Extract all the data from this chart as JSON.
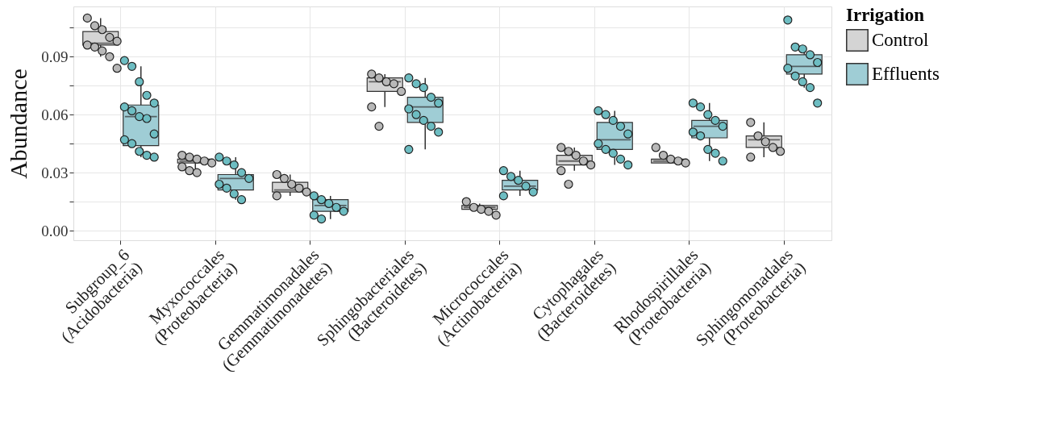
{
  "chart_data": {
    "type": "box",
    "ylabel": "Abundance",
    "legend_title": "Irrigation",
    "legend": "right",
    "grid": true,
    "categories": [
      "Subgroup_6\n(Acidobacteria)",
      "Myxococcales\n(Proteobacteria)",
      "Gemmatimonadales\n(Gemmatimonadetes)",
      "Sphingobacteriales\n(Bacteroidetes)",
      "Micrococcales\n(Actinobacteria)",
      "Cytophagales\n(Bacteroidetes)",
      "Rhodospirillales\n(Proteobacteria)",
      "Sphingomonadales\n(Proteobacteria)"
    ],
    "ylim": [
      -0.005,
      0.116
    ],
    "yticks": [
      {
        "value": 0,
        "label": "0.00"
      },
      {
        "value": 0.015,
        "label": null
      },
      0.03,
      {
        "value": 0.045,
        "label": null
      },
      0.06,
      {
        "value": 0.075,
        "label": null
      },
      0.09,
      {
        "value": 0.105,
        "label": null
      }
    ],
    "series": [
      {
        "name": "Control",
        "color": "#d4d4d4",
        "boxes": [
          {
            "low": 0.09,
            "q1": 0.096,
            "median": 0.097,
            "q3": 0.103,
            "high": 0.11
          },
          {
            "low": 0.03,
            "q1": 0.035,
            "median": 0.036,
            "q3": 0.037,
            "high": 0.039
          },
          {
            "low": 0.018,
            "q1": 0.02,
            "median": 0.021,
            "q3": 0.025,
            "high": 0.029
          },
          {
            "low": 0.064,
            "q1": 0.072,
            "median": 0.077,
            "q3": 0.079,
            "high": 0.081
          },
          {
            "low": 0.01,
            "q1": 0.011,
            "median": 0.012,
            "q3": 0.013,
            "high": 0.014
          },
          {
            "low": 0.031,
            "q1": 0.034,
            "median": 0.036,
            "q3": 0.039,
            "high": 0.043
          },
          {
            "low": 0.035,
            "q1": 0.035,
            "median": 0.036,
            "q3": 0.037,
            "high": 0.038
          },
          {
            "low": 0.038,
            "q1": 0.043,
            "median": 0.047,
            "q3": 0.049,
            "high": 0.056
          }
        ]
      },
      {
        "name": "Effluents",
        "color": "#9fcdd5",
        "boxes": [
          {
            "low": 0.038,
            "q1": 0.044,
            "median": 0.059,
            "q3": 0.065,
            "high": 0.085
          },
          {
            "low": 0.016,
            "q1": 0.021,
            "median": 0.027,
            "q3": 0.029,
            "high": 0.038
          },
          {
            "low": 0.006,
            "q1": 0.01,
            "median": 0.013,
            "q3": 0.016,
            "high": 0.018
          },
          {
            "low": 0.042,
            "q1": 0.056,
            "median": 0.064,
            "q3": 0.069,
            "high": 0.079
          },
          {
            "low": 0.018,
            "q1": 0.021,
            "median": 0.023,
            "q3": 0.026,
            "high": 0.031
          },
          {
            "low": 0.034,
            "q1": 0.042,
            "median": 0.047,
            "q3": 0.056,
            "high": 0.062
          },
          {
            "low": 0.036,
            "q1": 0.048,
            "median": 0.054,
            "q3": 0.057,
            "high": 0.066
          },
          {
            "low": 0.074,
            "q1": 0.081,
            "median": 0.085,
            "q3": 0.091,
            "high": 0.095
          }
        ]
      },
      {
        "type": "scatter",
        "color": "#b8b8b8",
        "x": [
          "Subgroup_6\n(Acidobacteria)",
          "Subgroup_6\n(Acidobacteria)",
          "Subgroup_6\n(Acidobacteria)",
          "Subgroup_6\n(Acidobacteria)",
          "Subgroup_6\n(Acidobacteria)",
          "Subgroup_6\n(Acidobacteria)",
          "Subgroup_6\n(Acidobacteria)",
          "Subgroup_6\n(Acidobacteria)",
          "Subgroup_6\n(Acidobacteria)",
          "Subgroup_6\n(Acidobacteria)",
          "Myxococcales\n(Proteobacteria)",
          "Myxococcales\n(Proteobacteria)",
          "Myxococcales\n(Proteobacteria)",
          "Myxococcales\n(Proteobacteria)",
          "Myxococcales\n(Proteobacteria)",
          "Myxococcales\n(Proteobacteria)",
          "Myxococcales\n(Proteobacteria)",
          "Myxococcales\n(Proteobacteria)",
          "Gemmatimonadales\n(Gemmatimonadetes)",
          "Gemmatimonadales\n(Gemmatimonadetes)",
          "Gemmatimonadales\n(Gemmatimonadetes)",
          "Gemmatimonadales\n(Gemmatimonadetes)",
          "Gemmatimonadales\n(Gemmatimonadetes)",
          "Gemmatimonadales\n(Gemmatimonadetes)",
          "Sphingobacteriales\n(Bacteroidetes)",
          "Sphingobacteriales\n(Bacteroidetes)",
          "Sphingobacteriales\n(Bacteroidetes)",
          "Sphingobacteriales\n(Bacteroidetes)",
          "Sphingobacteriales\n(Bacteroidetes)",
          "Sphingobacteriales\n(Bacteroidetes)",
          "Sphingobacteriales\n(Bacteroidetes)",
          "Micrococcales\n(Actinobacteria)",
          "Micrococcales\n(Actinobacteria)",
          "Micrococcales\n(Actinobacteria)",
          "Micrococcales\n(Actinobacteria)",
          "Micrococcales\n(Actinobacteria)",
          "Cytophagales\n(Bacteroidetes)",
          "Cytophagales\n(Bacteroidetes)",
          "Cytophagales\n(Bacteroidetes)",
          "Cytophagales\n(Bacteroidetes)",
          "Cytophagales\n(Bacteroidetes)",
          "Cytophagales\n(Bacteroidetes)",
          "Cytophagales\n(Bacteroidetes)",
          "Rhodospirillales\n(Proteobacteria)",
          "Rhodospirillales\n(Proteobacteria)",
          "Rhodospirillales\n(Proteobacteria)",
          "Rhodospirillales\n(Proteobacteria)",
          "Rhodospirillales\n(Proteobacteria)",
          "Sphingomonadales\n(Proteobacteria)",
          "Sphingomonadales\n(Proteobacteria)",
          "Sphingomonadales\n(Proteobacteria)",
          "Sphingomonadales\n(Proteobacteria)",
          "Sphingomonadales\n(Proteobacteria)",
          "Sphingomonadales\n(Proteobacteria)"
        ],
        "values": [
          0.11,
          0.106,
          0.104,
          0.1,
          0.098,
          0.096,
          0.095,
          0.093,
          0.09,
          0.084,
          0.039,
          0.038,
          0.037,
          0.036,
          0.035,
          0.033,
          0.031,
          0.03,
          0.029,
          0.027,
          0.024,
          0.022,
          0.02,
          0.018,
          0.081,
          0.079,
          0.077,
          0.076,
          0.072,
          0.064,
          0.054,
          0.015,
          0.012,
          0.011,
          0.01,
          0.008,
          0.043,
          0.041,
          0.039,
          0.036,
          0.034,
          0.031,
          0.024,
          0.043,
          0.039,
          0.037,
          0.036,
          0.035,
          0.056,
          0.049,
          0.046,
          0.043,
          0.041,
          0.038
        ]
      },
      {
        "type": "scatter",
        "color": "#6dbdc2",
        "x": [
          "Subgroup_6\n(Acidobacteria)",
          "Subgroup_6\n(Acidobacteria)",
          "Subgroup_6\n(Acidobacteria)",
          "Subgroup_6\n(Acidobacteria)",
          "Subgroup_6\n(Acidobacteria)",
          "Subgroup_6\n(Acidobacteria)",
          "Subgroup_6\n(Acidobacteria)",
          "Subgroup_6\n(Acidobacteria)",
          "Subgroup_6\n(Acidobacteria)",
          "Subgroup_6\n(Acidobacteria)",
          "Subgroup_6\n(Acidobacteria)",
          "Subgroup_6\n(Acidobacteria)",
          "Subgroup_6\n(Acidobacteria)",
          "Subgroup_6\n(Acidobacteria)",
          "Subgroup_6\n(Acidobacteria)",
          "Myxococcales\n(Proteobacteria)",
          "Myxococcales\n(Proteobacteria)",
          "Myxococcales\n(Proteobacteria)",
          "Myxococcales\n(Proteobacteria)",
          "Myxococcales\n(Proteobacteria)",
          "Myxococcales\n(Proteobacteria)",
          "Myxococcales\n(Proteobacteria)",
          "Myxococcales\n(Proteobacteria)",
          "Myxococcales\n(Proteobacteria)",
          "Gemmatimonadales\n(Gemmatimonadetes)",
          "Gemmatimonadales\n(Gemmatimonadetes)",
          "Gemmatimonadales\n(Gemmatimonadetes)",
          "Gemmatimonadales\n(Gemmatimonadetes)",
          "Gemmatimonadales\n(Gemmatimonadetes)",
          "Gemmatimonadales\n(Gemmatimonadetes)",
          "Gemmatimonadales\n(Gemmatimonadetes)",
          "Sphingobacteriales\n(Bacteroidetes)",
          "Sphingobacteriales\n(Bacteroidetes)",
          "Sphingobacteriales\n(Bacteroidetes)",
          "Sphingobacteriales\n(Bacteroidetes)",
          "Sphingobacteriales\n(Bacteroidetes)",
          "Sphingobacteriales\n(Bacteroidetes)",
          "Sphingobacteriales\n(Bacteroidetes)",
          "Sphingobacteriales\n(Bacteroidetes)",
          "Sphingobacteriales\n(Bacteroidetes)",
          "Sphingobacteriales\n(Bacteroidetes)",
          "Sphingobacteriales\n(Bacteroidetes)",
          "Micrococcales\n(Actinobacteria)",
          "Micrococcales\n(Actinobacteria)",
          "Micrococcales\n(Actinobacteria)",
          "Micrococcales\n(Actinobacteria)",
          "Micrococcales\n(Actinobacteria)",
          "Micrococcales\n(Actinobacteria)",
          "Cytophagales\n(Bacteroidetes)",
          "Cytophagales\n(Bacteroidetes)",
          "Cytophagales\n(Bacteroidetes)",
          "Cytophagales\n(Bacteroidetes)",
          "Cytophagales\n(Bacteroidetes)",
          "Cytophagales\n(Bacteroidetes)",
          "Cytophagales\n(Bacteroidetes)",
          "Cytophagales\n(Bacteroidetes)",
          "Cytophagales\n(Bacteroidetes)",
          "Cytophagales\n(Bacteroidetes)",
          "Rhodospirillales\n(Proteobacteria)",
          "Rhodospirillales\n(Proteobacteria)",
          "Rhodospirillales\n(Proteobacteria)",
          "Rhodospirillales\n(Proteobacteria)",
          "Rhodospirillales\n(Proteobacteria)",
          "Rhodospirillales\n(Proteobacteria)",
          "Rhodospirillales\n(Proteobacteria)",
          "Rhodospirillales\n(Proteobacteria)",
          "Rhodospirillales\n(Proteobacteria)",
          "Rhodospirillales\n(Proteobacteria)",
          "Sphingomonadales\n(Proteobacteria)",
          "Sphingomonadales\n(Proteobacteria)",
          "Sphingomonadales\n(Proteobacteria)",
          "Sphingomonadales\n(Proteobacteria)",
          "Sphingomonadales\n(Proteobacteria)",
          "Sphingomonadales\n(Proteobacteria)",
          "Sphingomonadales\n(Proteobacteria)",
          "Sphingomonadales\n(Proteobacteria)",
          "Sphingomonadales\n(Proteobacteria)",
          "Sphingomonadales\n(Proteobacteria)"
        ],
        "values": [
          0.088,
          0.085,
          0.077,
          0.07,
          0.066,
          0.064,
          0.062,
          0.059,
          0.058,
          0.05,
          0.047,
          0.045,
          0.041,
          0.039,
          0.038,
          0.038,
          0.036,
          0.034,
          0.03,
          0.027,
          0.024,
          0.022,
          0.019,
          0.016,
          0.018,
          0.016,
          0.014,
          0.012,
          0.01,
          0.008,
          0.006,
          0.079,
          0.076,
          0.074,
          0.069,
          0.066,
          0.063,
          0.06,
          0.057,
          0.054,
          0.051,
          0.042,
          0.031,
          0.028,
          0.026,
          0.023,
          0.02,
          0.018,
          0.062,
          0.06,
          0.057,
          0.054,
          0.05,
          0.045,
          0.042,
          0.04,
          0.037,
          0.034,
          0.066,
          0.064,
          0.06,
          0.057,
          0.054,
          0.051,
          0.049,
          0.042,
          0.04,
          0.036,
          0.109,
          0.095,
          0.094,
          0.091,
          0.087,
          0.084,
          0.08,
          0.077,
          0.074,
          0.066
        ]
      }
    ]
  }
}
